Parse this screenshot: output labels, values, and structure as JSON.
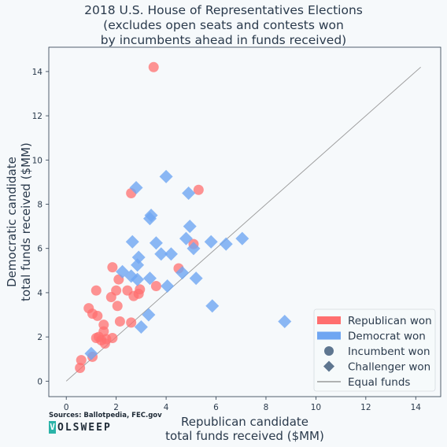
{
  "title_lines": [
    "2018 U.S. House of Representatives Elections",
    "(excludes open seats and contests won",
    "by incumbents ahead in funds received)"
  ],
  "source_text": "Sources: Ballotpedia, FEC.gov",
  "logo": {
    "initial": "V",
    "rest": "OLSWEEP"
  },
  "chart_data": {
    "type": "scatter",
    "title": "2018 U.S. House of Representatives Elections (excludes open seats and contests won by incumbents ahead in funds received)",
    "xlabel": "Republican candidate\ntotal funds received ($MM)",
    "ylabel": "Democratic candidate\ntotal funds received ($MM)",
    "xlim": [
      -0.7,
      15.0
    ],
    "ylim": [
      -0.7,
      15.1
    ],
    "xticks": [
      0,
      2,
      4,
      6,
      8,
      10,
      12,
      14
    ],
    "yticks": [
      0,
      2,
      4,
      6,
      8,
      10,
      12,
      14
    ],
    "grid": false,
    "legend_position": "bottom-right",
    "legend": [
      {
        "label": "Republican won",
        "kind": "patch",
        "color": "#ff6f6f"
      },
      {
        "label": "Democrat won",
        "kind": "patch",
        "color": "#6fa6f2"
      },
      {
        "label": "Incumbent won",
        "kind": "circle",
        "color": "#5e7690"
      },
      {
        "label": "Challenger won",
        "kind": "diamond",
        "color": "#5e7690"
      },
      {
        "label": "Equal funds",
        "kind": "line",
        "color": "#999999"
      }
    ],
    "colors": {
      "republican": "#ff6f6f",
      "democrat": "#6fa6f2",
      "line": "#999999"
    },
    "equal_funds_line": {
      "x": [
        0,
        14.2
      ],
      "y": [
        0,
        14.2
      ]
    },
    "series": [
      {
        "name": "Republican won",
        "marker": "circle",
        "color": "#ff6f6f",
        "points": [
          [
            3.5,
            14.2
          ],
          [
            5.3,
            8.65
          ],
          [
            2.6,
            8.5
          ],
          [
            5.1,
            6.2
          ],
          [
            4.5,
            5.1
          ],
          [
            1.85,
            5.15
          ],
          [
            2.1,
            4.6
          ],
          [
            3.6,
            4.3
          ],
          [
            1.2,
            4.1
          ],
          [
            2.0,
            4.1
          ],
          [
            2.95,
            4.15
          ],
          [
            2.45,
            4.1
          ],
          [
            2.9,
            3.95
          ],
          [
            2.7,
            3.85
          ],
          [
            1.8,
            3.8
          ],
          [
            0.9,
            3.3
          ],
          [
            2.05,
            3.4
          ],
          [
            1.05,
            3.05
          ],
          [
            1.25,
            2.95
          ],
          [
            2.15,
            2.7
          ],
          [
            2.6,
            2.65
          ],
          [
            1.5,
            2.55
          ],
          [
            1.5,
            2.25
          ],
          [
            1.3,
            2.0
          ],
          [
            1.2,
            1.95
          ],
          [
            1.85,
            1.95
          ],
          [
            1.6,
            1.9
          ],
          [
            1.4,
            1.85
          ],
          [
            1.55,
            1.7
          ],
          [
            1.05,
            1.1
          ],
          [
            0.6,
            0.95
          ],
          [
            0.55,
            0.6
          ]
        ]
      },
      {
        "name": "Democrat won",
        "marker": "diamond",
        "color": "#6fa6f2",
        "points": [
          [
            4.0,
            9.25
          ],
          [
            2.8,
            8.75
          ],
          [
            4.9,
            8.5
          ],
          [
            3.4,
            7.5
          ],
          [
            3.35,
            7.35
          ],
          [
            4.95,
            7.0
          ],
          [
            4.8,
            6.45
          ],
          [
            2.65,
            6.3
          ],
          [
            3.6,
            6.25
          ],
          [
            5.8,
            6.3
          ],
          [
            6.4,
            6.2
          ],
          [
            7.05,
            6.45
          ],
          [
            5.1,
            6.0
          ],
          [
            3.8,
            5.75
          ],
          [
            4.2,
            5.75
          ],
          [
            2.9,
            5.6
          ],
          [
            2.85,
            5.25
          ],
          [
            2.25,
            4.95
          ],
          [
            4.65,
            4.9
          ],
          [
            2.6,
            4.75
          ],
          [
            2.85,
            4.6
          ],
          [
            3.35,
            4.65
          ],
          [
            5.2,
            4.65
          ],
          [
            4.05,
            4.3
          ],
          [
            5.85,
            3.4
          ],
          [
            3.3,
            3.0
          ],
          [
            3.0,
            2.45
          ],
          [
            8.75,
            2.7
          ],
          [
            1.0,
            1.25
          ]
        ]
      }
    ]
  }
}
